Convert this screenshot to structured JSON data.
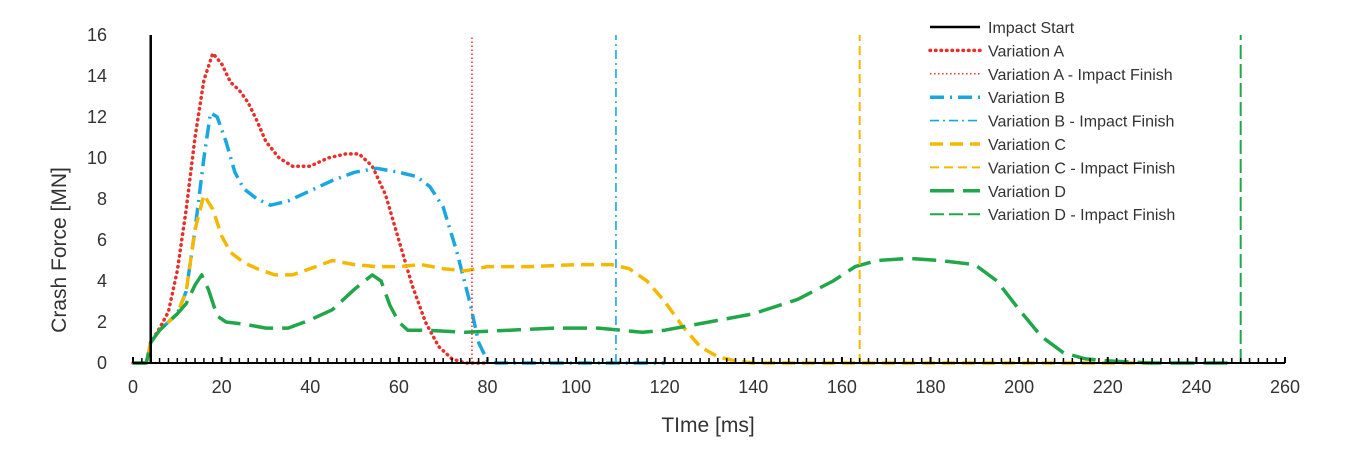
{
  "chart_data": {
    "type": "line",
    "title": "",
    "xlabel": "TIme [ms]",
    "ylabel": "Crash Force [MN]",
    "xlim": [
      0,
      260
    ],
    "ylim": [
      0,
      16
    ],
    "xticks": [
      0,
      20,
      40,
      60,
      80,
      100,
      120,
      140,
      160,
      180,
      200,
      220,
      240,
      260
    ],
    "yticks": [
      0,
      2,
      4,
      6,
      8,
      10,
      12,
      14,
      16
    ],
    "x_minor_step": 2,
    "grid": false,
    "legend_position": "top-right",
    "series": [
      {
        "name": "Variation A",
        "color": "#e8302b",
        "dash": "dotted",
        "points": [
          [
            0,
            0
          ],
          [
            3,
            0
          ],
          [
            4,
            1.0
          ],
          [
            6,
            1.7
          ],
          [
            8,
            2.5
          ],
          [
            10,
            4.5
          ],
          [
            12,
            7.5
          ],
          [
            14,
            11.0
          ],
          [
            16,
            13.8
          ],
          [
            18,
            15.1
          ],
          [
            20,
            14.6
          ],
          [
            22,
            13.7
          ],
          [
            24,
            13.3
          ],
          [
            26,
            12.7
          ],
          [
            28,
            11.8
          ],
          [
            30,
            10.8
          ],
          [
            33,
            10.0
          ],
          [
            36,
            9.6
          ],
          [
            40,
            9.6
          ],
          [
            44,
            10.0
          ],
          [
            48,
            10.2
          ],
          [
            51,
            10.2
          ],
          [
            54,
            9.6
          ],
          [
            57,
            8.2
          ],
          [
            60,
            6.0
          ],
          [
            63,
            3.8
          ],
          [
            66,
            2.0
          ],
          [
            69,
            0.8
          ],
          [
            72,
            0.2
          ],
          [
            75,
            0.0
          ],
          [
            80,
            0.0
          ]
        ]
      },
      {
        "name": "Variation A - Impact Finish",
        "color": "#e8302b",
        "dash": "dotted-thin",
        "vline_x": 76.5
      },
      {
        "name": "Variation B",
        "color": "#1aa7e0",
        "dash": "dashdot",
        "points": [
          [
            0,
            0
          ],
          [
            3,
            0
          ],
          [
            4,
            1.0
          ],
          [
            6,
            1.6
          ],
          [
            8,
            2.0
          ],
          [
            10,
            2.4
          ],
          [
            12,
            3.5
          ],
          [
            14,
            6.5
          ],
          [
            16,
            10.0
          ],
          [
            17.5,
            12.2
          ],
          [
            19,
            12.0
          ],
          [
            21,
            10.8
          ],
          [
            23,
            9.3
          ],
          [
            25,
            8.5
          ],
          [
            28,
            8.0
          ],
          [
            31,
            7.7
          ],
          [
            35,
            7.9
          ],
          [
            40,
            8.4
          ],
          [
            45,
            8.9
          ],
          [
            50,
            9.3
          ],
          [
            55,
            9.5
          ],
          [
            60,
            9.3
          ],
          [
            64,
            9.1
          ],
          [
            67,
            8.6
          ],
          [
            70,
            7.6
          ],
          [
            73,
            5.5
          ],
          [
            76,
            3.0
          ],
          [
            78,
            1.0
          ],
          [
            80,
            0.1
          ],
          [
            82,
            0.0
          ],
          [
            110,
            0.0
          ],
          [
            120,
            0.0
          ]
        ]
      },
      {
        "name": "Variation B - Impact Finish",
        "color": "#1aa7e0",
        "dash": "dashdot-thin",
        "vline_x": 109
      },
      {
        "name": "Variation C",
        "color": "#f5b800",
        "dash": "dashed",
        "points": [
          [
            0,
            0
          ],
          [
            3,
            0
          ],
          [
            4,
            1.0
          ],
          [
            6,
            1.6
          ],
          [
            8,
            2.0
          ],
          [
            10,
            2.4
          ],
          [
            12,
            3.5
          ],
          [
            14,
            6.5
          ],
          [
            16,
            8.2
          ],
          [
            18,
            7.5
          ],
          [
            20,
            6.2
          ],
          [
            22,
            5.4
          ],
          [
            25,
            4.9
          ],
          [
            28,
            4.6
          ],
          [
            32,
            4.3
          ],
          [
            36,
            4.3
          ],
          [
            40,
            4.6
          ],
          [
            45,
            5.0
          ],
          [
            50,
            4.8
          ],
          [
            55,
            4.7
          ],
          [
            60,
            4.7
          ],
          [
            65,
            4.8
          ],
          [
            70,
            4.6
          ],
          [
            75,
            4.5
          ],
          [
            80,
            4.7
          ],
          [
            90,
            4.7
          ],
          [
            100,
            4.8
          ],
          [
            108,
            4.8
          ],
          [
            112,
            4.6
          ],
          [
            116,
            4.0
          ],
          [
            120,
            3.0
          ],
          [
            124,
            1.8
          ],
          [
            128,
            0.8
          ],
          [
            132,
            0.3
          ],
          [
            136,
            0.1
          ],
          [
            140,
            0.0
          ],
          [
            160,
            0.0
          ],
          [
            200,
            0.0
          ],
          [
            230,
            0.0
          ]
        ]
      },
      {
        "name": "Variation C - Impact Finish",
        "color": "#f5b800",
        "dash": "dashed-thin",
        "vline_x": 164
      },
      {
        "name": "Variation D",
        "color": "#22a64a",
        "dash": "longdash",
        "points": [
          [
            0,
            0
          ],
          [
            3,
            0
          ],
          [
            4,
            1.0
          ],
          [
            6,
            1.6
          ],
          [
            8,
            2.0
          ],
          [
            10,
            2.4
          ],
          [
            12,
            2.9
          ],
          [
            14,
            3.8
          ],
          [
            15.5,
            4.3
          ],
          [
            17,
            3.6
          ],
          [
            19,
            2.3
          ],
          [
            21,
            2.0
          ],
          [
            25,
            1.9
          ],
          [
            30,
            1.7
          ],
          [
            35,
            1.7
          ],
          [
            40,
            2.1
          ],
          [
            45,
            2.6
          ],
          [
            50,
            3.6
          ],
          [
            54,
            4.3
          ],
          [
            56,
            4.0
          ],
          [
            58,
            2.8
          ],
          [
            60,
            2.0
          ],
          [
            62,
            1.6
          ],
          [
            66,
            1.6
          ],
          [
            75,
            1.5
          ],
          [
            85,
            1.6
          ],
          [
            95,
            1.7
          ],
          [
            105,
            1.7
          ],
          [
            110,
            1.6
          ],
          [
            115,
            1.5
          ],
          [
            120,
            1.6
          ],
          [
            130,
            2.0
          ],
          [
            140,
            2.4
          ],
          [
            150,
            3.1
          ],
          [
            158,
            4.0
          ],
          [
            163,
            4.7
          ],
          [
            168,
            5.0
          ],
          [
            175,
            5.1
          ],
          [
            182,
            5.0
          ],
          [
            190,
            4.8
          ],
          [
            195,
            4.0
          ],
          [
            200,
            2.6
          ],
          [
            205,
            1.3
          ],
          [
            210,
            0.5
          ],
          [
            215,
            0.2
          ],
          [
            220,
            0.1
          ],
          [
            230,
            0.0
          ],
          [
            249,
            0.0
          ]
        ]
      },
      {
        "name": "Variation D - Impact Finish",
        "color": "#22a64a",
        "dash": "longdash-thin",
        "vline_x": 250
      },
      {
        "name": "Impact Start",
        "color": "#000000",
        "dash": "solid",
        "vline_x": 4
      }
    ],
    "legend_order": [
      "Impact Start",
      "Variation A",
      "Variation A - Impact Finish",
      "Variation B",
      "Variation B - Impact Finish",
      "Variation C",
      "Variation C - Impact Finish",
      "Variation D",
      "Variation D - Impact Finish"
    ]
  }
}
